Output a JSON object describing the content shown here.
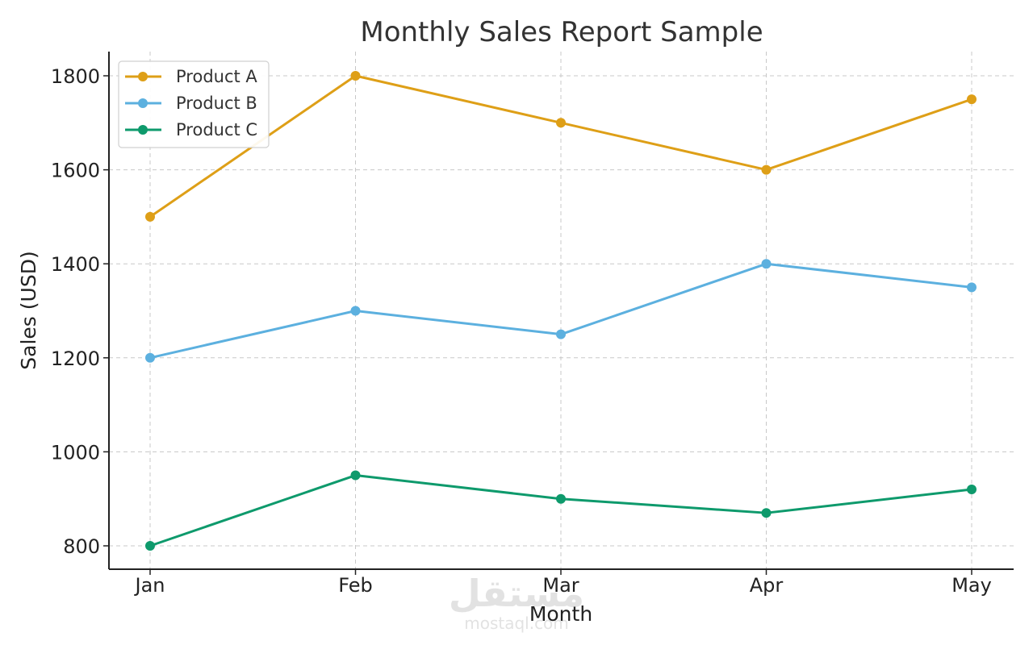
{
  "chart_data": {
    "type": "line",
    "title": "Monthly Sales Report Sample",
    "xlabel": "Month",
    "ylabel": "Sales (USD)",
    "categories": [
      "Jan",
      "Feb",
      "Mar",
      "Apr",
      "May"
    ],
    "ylim": [
      750,
      1850
    ],
    "yticks": [
      800,
      1000,
      1200,
      1400,
      1600,
      1800
    ],
    "grid": true,
    "legend_position": "top-left",
    "series": [
      {
        "name": "Product A",
        "color": "#DE9F17",
        "values": [
          1500,
          1800,
          1700,
          1600,
          1750
        ]
      },
      {
        "name": "Product B",
        "color": "#5CB0DF",
        "values": [
          1200,
          1300,
          1250,
          1400,
          1350
        ]
      },
      {
        "name": "Product C",
        "color": "#0E9A6C",
        "values": [
          800,
          950,
          900,
          870,
          920
        ]
      }
    ]
  },
  "watermark": {
    "logo_text": "مستقل",
    "url_text": "mostaql.com"
  }
}
